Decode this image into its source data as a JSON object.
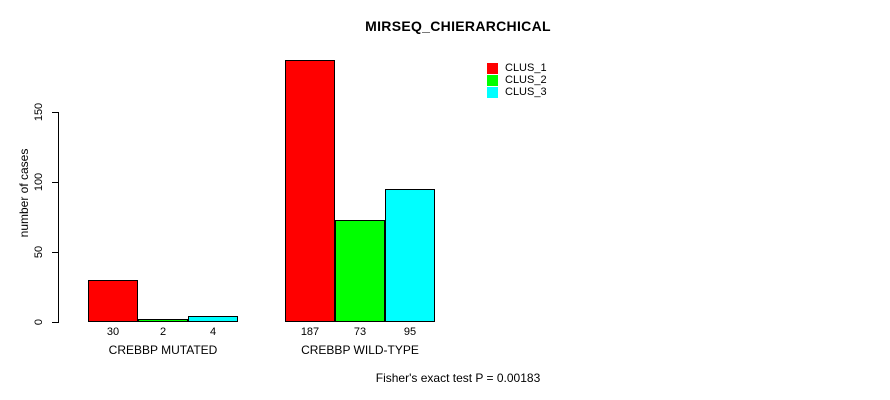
{
  "chart_data": {
    "type": "bar",
    "title": "MIRSEQ_CHIERARCHICAL",
    "xlabel": "",
    "ylabel": "number of cases",
    "categories": [
      "CREBBP MUTATED",
      "CREBBP WILD-TYPE"
    ],
    "series": [
      {
        "name": "CLUS_1",
        "color": "#ff0000",
        "values": [
          30,
          187
        ]
      },
      {
        "name": "CLUS_2",
        "color": "#00ff00",
        "values": [
          2,
          73
        ]
      },
      {
        "name": "CLUS_3",
        "color": "#00ffff",
        "values": [
          4,
          95
        ]
      }
    ],
    "bar_value_labels": [
      [
        "30",
        "2",
        "4"
      ],
      [
        "187",
        "73",
        "95"
      ]
    ],
    "yticks": [
      0,
      50,
      100,
      150
    ],
    "ylim": [
      0,
      187
    ],
    "grid": false,
    "legend_position": "top-right",
    "footer": "Fisher's exact test P = 0.00183"
  },
  "colors": {
    "background": "#ffffff",
    "axis": "#000000",
    "text": "#000000"
  }
}
